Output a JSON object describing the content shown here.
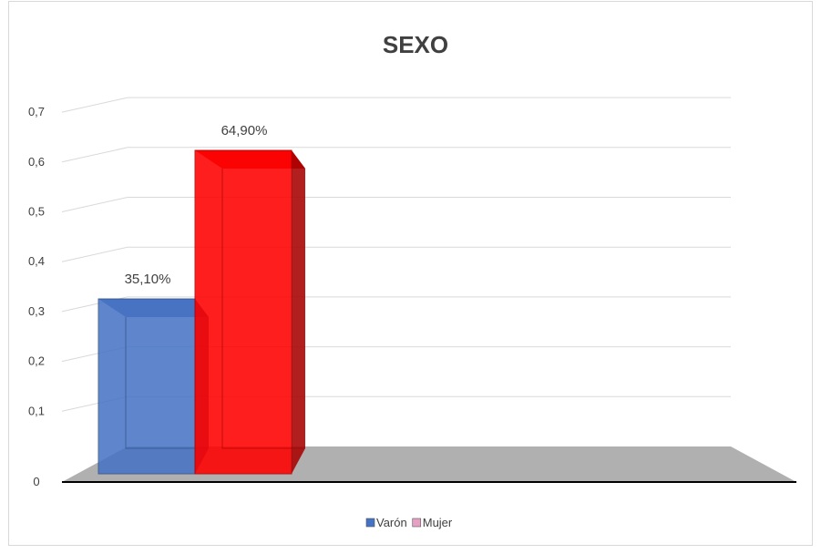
{
  "chart_data": {
    "type": "bar",
    "title": "SEXO",
    "xlabel": "",
    "ylabel": "",
    "categories": [
      ""
    ],
    "series": [
      {
        "name": "Varón",
        "values": [
          0.351
        ],
        "label": "35,10%",
        "color": "#4472C4"
      },
      {
        "name": "Mujer",
        "values": [
          0.649
        ],
        "label": "64,90%",
        "color": "#FF0000"
      }
    ],
    "ylim": [
      0,
      0.7
    ],
    "yticks": [
      "0",
      "0,1",
      "0,2",
      "0,3",
      "0,4",
      "0,5",
      "0,6",
      "0,7"
    ],
    "grid": true,
    "legend": {
      "position": "bottom",
      "entries": [
        {
          "name": "Varón",
          "color": "#4472C4"
        },
        {
          "name": "Mujer",
          "color": "#E6A0C4"
        }
      ]
    },
    "style": "3d-column"
  }
}
